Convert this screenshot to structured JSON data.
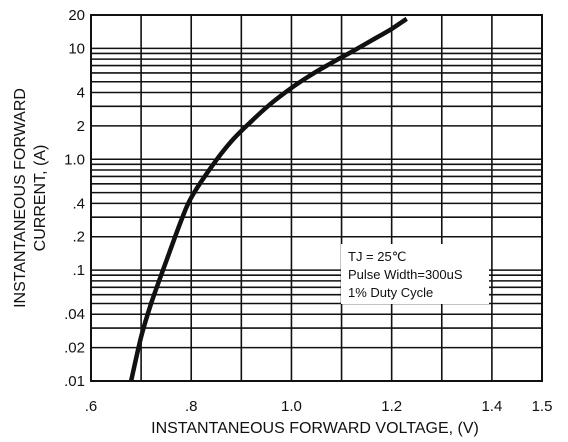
{
  "chart_data": {
    "type": "line",
    "title": "",
    "xlabel": "INSTANTANEOUS FORWARD VOLTAGE, (V)",
    "ylabel_lines": [
      "INSTANTANEOUS FORWARD",
      "CURRENT, (A)"
    ],
    "xlim": [
      0.6,
      1.5
    ],
    "ylim": [
      0.01,
      20
    ],
    "yscale": "log",
    "grid": true,
    "x_ticks": [
      {
        "value": 0.6,
        "label": ".6"
      },
      {
        "value": 0.8,
        "label": ".8"
      },
      {
        "value": 1.0,
        "label": "1.0"
      },
      {
        "value": 1.2,
        "label": "1.2"
      },
      {
        "value": 1.4,
        "label": "1.4"
      },
      {
        "value": 1.5,
        "label": "1.5"
      }
    ],
    "y_ticks": [
      {
        "value": 20,
        "label": "20"
      },
      {
        "value": 10,
        "label": "10"
      },
      {
        "value": 4,
        "label": "4"
      },
      {
        "value": 2,
        "label": "2"
      },
      {
        "value": 1.0,
        "label": "1.0"
      },
      {
        "value": 0.4,
        "label": ".4"
      },
      {
        "value": 0.2,
        "label": ".2"
      },
      {
        "value": 0.1,
        "label": ".1"
      },
      {
        "value": 0.04,
        "label": ".04"
      },
      {
        "value": 0.02,
        "label": ".02"
      },
      {
        "value": 0.01,
        "label": ".01"
      }
    ],
    "x_gridlines": [
      0.7,
      0.8,
      0.9,
      1.0,
      1.1,
      1.2,
      1.3,
      1.4
    ],
    "y_gridlines": [
      0.02,
      0.03,
      0.04,
      0.05,
      0.06,
      0.07,
      0.08,
      0.09,
      0.1,
      0.2,
      0.3,
      0.4,
      0.5,
      0.6,
      0.7,
      0.8,
      0.9,
      1,
      2,
      3,
      4,
      5,
      6,
      7,
      8,
      9,
      10
    ],
    "series": [
      {
        "x": [
          0.68,
          0.7,
          0.72,
          0.75,
          0.78,
          0.8,
          0.84,
          0.88,
          0.92,
          0.96,
          1.0,
          1.04,
          1.08,
          1.12,
          1.16,
          1.2,
          1.23
        ],
        "y": [
          0.01,
          0.025,
          0.05,
          0.12,
          0.28,
          0.45,
          0.85,
          1.45,
          2.2,
          3.2,
          4.4,
          5.8,
          7.4,
          9.3,
          11.8,
          15.0,
          18.5
        ]
      }
    ],
    "annotation_lines": [
      "TJ = 25℃",
      "Pulse Width=300uS",
      "1% Duty Cycle"
    ]
  }
}
